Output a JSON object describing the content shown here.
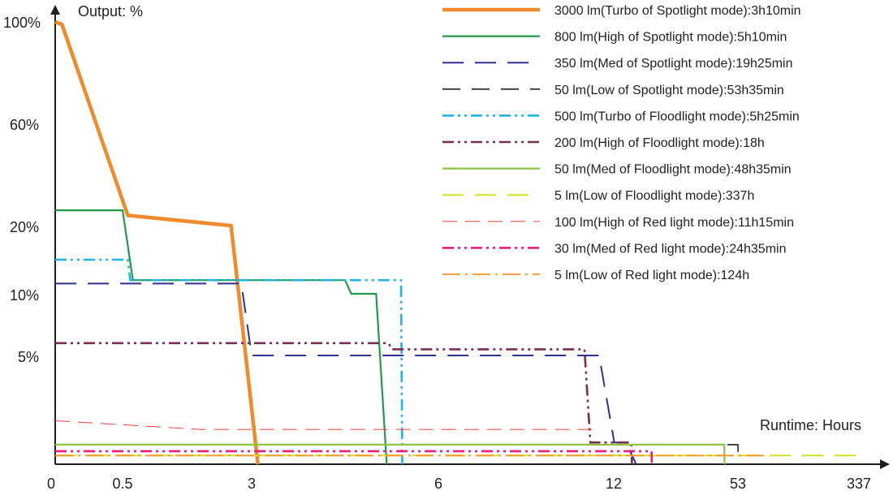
{
  "chart_data": {
    "type": "line",
    "y_axis_title": "Output: %",
    "x_axis_title": "Runtime: Hours",
    "y_ticks": [
      "100%",
      "60%",
      "20%",
      "10%",
      "5%"
    ],
    "x_ticks": [
      "0",
      "0.5",
      "3",
      "6",
      "12",
      "53",
      "337"
    ],
    "series": [
      {
        "name": "3000 lm(Turbo of Spotlight mode):3h10min",
        "color": "#f18a2a",
        "dash": "solid",
        "points": [
          [
            "0",
            "100%"
          ],
          [
            "0.05",
            "99%"
          ],
          [
            "0.6",
            "24%"
          ],
          [
            "2.6",
            "20%"
          ],
          [
            "3.1",
            "0%"
          ]
        ]
      },
      {
        "name": "800 lm(High of Spotlight mode):5h10min",
        "color": "#1f9b4a",
        "dash": "solid",
        "points": [
          [
            "0",
            "26%"
          ],
          [
            "0.5",
            "26%"
          ],
          [
            "0.7",
            "12%"
          ],
          [
            "4.5",
            "12%"
          ],
          [
            "4.6",
            "10%"
          ],
          [
            "5",
            "10%"
          ],
          [
            "5.17",
            "0%"
          ]
        ]
      },
      {
        "name": "350 lm(Med of Spotlight mode):19h25min",
        "color": "#2e3192",
        "dash": "long-dash",
        "points": [
          [
            "0",
            "11.5%"
          ],
          [
            "2.8",
            "11.5%"
          ],
          [
            "3",
            "5%"
          ],
          [
            "11.5",
            "5%"
          ],
          [
            "12.2",
            "1%"
          ],
          [
            "16",
            "1%"
          ],
          [
            "19.4",
            "0%"
          ]
        ]
      },
      {
        "name": "50 lm(Low of Spotlight mode):53h35min",
        "color": "#231f20",
        "dash": "dash",
        "points": [
          [
            "0",
            "0.9%"
          ],
          [
            "53",
            "0.9%"
          ],
          [
            "53.58",
            "0%"
          ]
        ]
      },
      {
        "name": "500 lm(Turbo of Floodlight mode):5h25min",
        "color": "#1cb5e8",
        "dash": "dash-dot-dot",
        "points": [
          [
            "0",
            "15%"
          ],
          [
            "0.6",
            "15%"
          ],
          [
            "0.65",
            "12%"
          ],
          [
            "5.4",
            "12%"
          ],
          [
            "5.42",
            "0%"
          ]
        ]
      },
      {
        "name": "200 lm(High of Floodlight mode):18h",
        "color": "#7b2c52",
        "dash": "dash-dot-dot",
        "points": [
          [
            "0",
            "6%"
          ],
          [
            "5.2",
            "6%"
          ],
          [
            "5.25",
            "5.5%"
          ],
          [
            "11",
            "5.5%"
          ],
          [
            "11.2",
            "1%"
          ],
          [
            "17.8",
            "1%"
          ],
          [
            "18",
            "0%"
          ]
        ]
      },
      {
        "name": "50 lm(Med of Floodlight mode):48h35min",
        "color": "#8cc63f",
        "dash": "solid",
        "points": [
          [
            "0",
            "0.9%"
          ],
          [
            "48.5",
            "0.9%"
          ],
          [
            "48.58",
            "0%"
          ]
        ]
      },
      {
        "name": "5 lm(Low of Floodlight mode):337h",
        "color": "#d7df23",
        "dash": "long-dash",
        "points": [
          [
            "0",
            "0.4%"
          ],
          [
            "337",
            "0.4%"
          ]
        ]
      },
      {
        "name": "100 lm(High of Red light mode):11h15min",
        "color": "#ef4136",
        "dash": "long-dash-thin",
        "points": [
          [
            "0",
            "2%"
          ],
          [
            "2",
            "1.6%"
          ],
          [
            "11.25",
            "1.6%"
          ]
        ]
      },
      {
        "name": "30 lm(Med of Red light mode):24h35min",
        "color": "#ec1c7c",
        "dash": "dash-dot-dot",
        "points": [
          [
            "0",
            "0.6%"
          ],
          [
            "24.5",
            "0.6%"
          ],
          [
            "24.58",
            "0%"
          ]
        ]
      },
      {
        "name": "5 lm(Low of Red light mode):124h",
        "color": "#f7941d",
        "dash": "dash-dot",
        "points": [
          [
            "0",
            "0.4%"
          ],
          [
            "124",
            "0.4%"
          ]
        ]
      }
    ]
  }
}
